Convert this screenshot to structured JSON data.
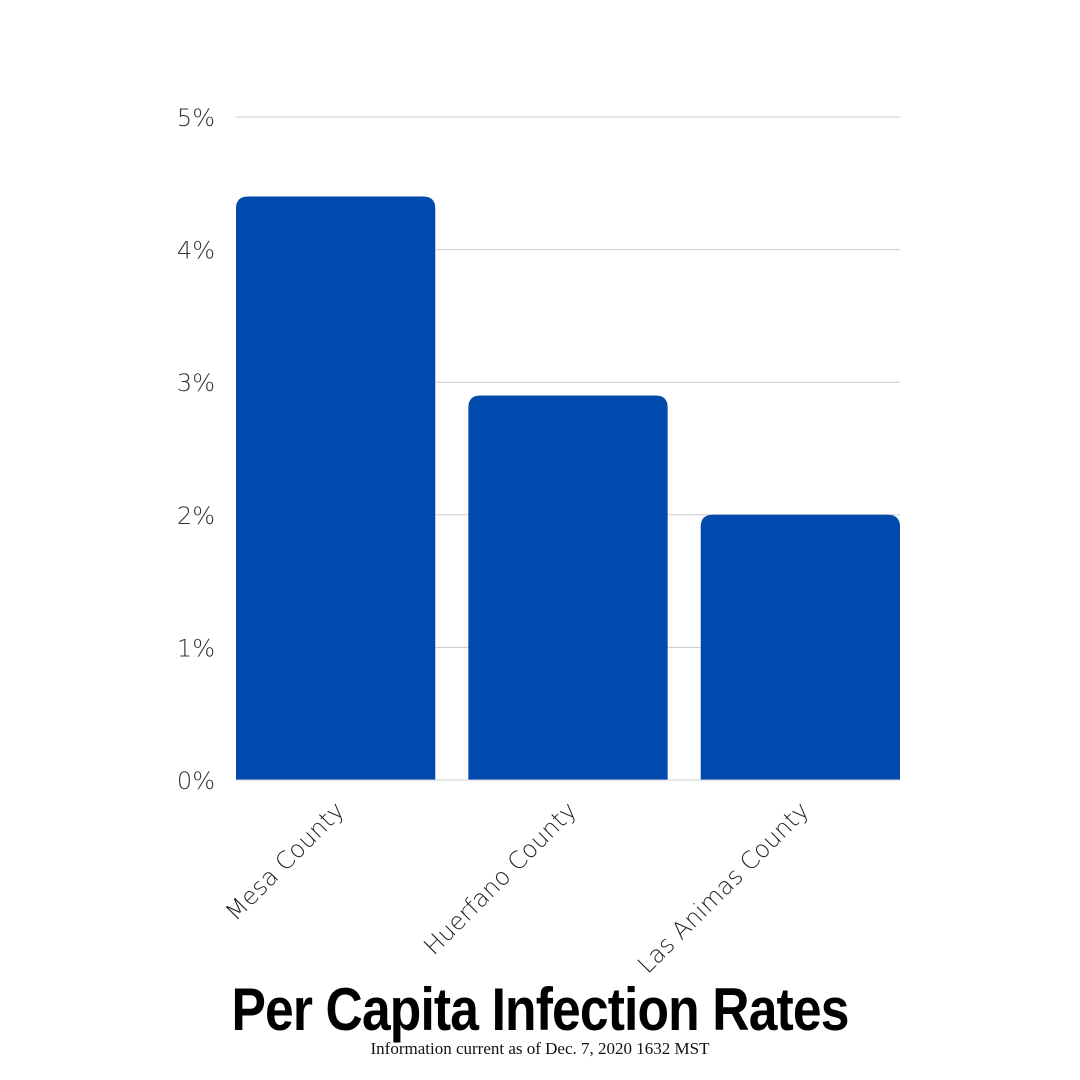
{
  "chart_data": {
    "type": "bar",
    "title": "Per Capita Infection Rates",
    "subtitle": "Information current as of Dec. 7, 2020 1632 MST",
    "categories": [
      "Mesa County",
      "Huerfano County",
      "Las Animas County"
    ],
    "values": [
      4.4,
      2.9,
      2.0
    ],
    "value_unit": "%",
    "ylim": [
      0,
      5
    ],
    "yticks": [
      0,
      1,
      2,
      3,
      4,
      5
    ],
    "ytick_labels": [
      "0%",
      "1%",
      "2%",
      "3%",
      "4%",
      "5%"
    ],
    "xlabel": "",
    "ylabel": "",
    "grid": true,
    "legend": "none",
    "bar_color": "#004aad"
  }
}
